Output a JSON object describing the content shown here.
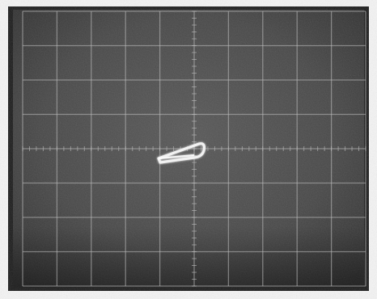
{
  "scene": {
    "subject": "oscilloscope-screen",
    "colors": {
      "paper": "#f4f4f4",
      "bezel": "#1c1c1c",
      "screen": "#4a4a4a",
      "screen_dark": "#2e2e2e",
      "graticule": "#bdbdbd",
      "trace": "#f2f2f2"
    },
    "graticule": {
      "major_columns": 10,
      "major_rows": 8,
      "minor_ticks_per_division": 5
    }
  }
}
